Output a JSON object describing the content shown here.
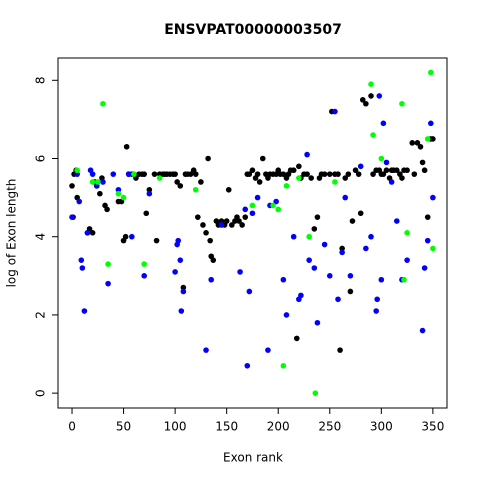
{
  "chart_data": {
    "type": "scatter",
    "title": "ENSVPAT00000003507",
    "x_label": "Exon rank",
    "y_label": "log of Exon length",
    "xlim": [
      -13.6,
      363.7
    ],
    "ylim": [
      -0.38,
      8.57
    ],
    "xticks": [
      0,
      50,
      100,
      150,
      200,
      250,
      300,
      350
    ],
    "yticks": [
      0,
      2,
      4,
      6,
      8
    ],
    "series": [
      {
        "color": "#000000",
        "x": [
          0,
          1,
          2,
          4,
          5,
          15,
          17,
          20,
          22,
          24,
          27,
          29,
          32,
          34,
          45,
          48,
          50,
          52,
          53,
          55,
          58,
          60,
          62,
          65,
          68,
          70,
          72,
          75,
          80,
          82,
          85,
          88,
          90,
          92,
          95,
          98,
          100,
          102,
          105,
          108,
          110,
          112,
          115,
          118,
          120,
          122,
          125,
          127,
          130,
          132,
          134,
          135,
          137,
          140,
          142,
          145,
          148,
          150,
          152,
          155,
          158,
          160,
          162,
          165,
          168,
          170,
          172,
          175,
          178,
          180,
          182,
          185,
          188,
          190,
          192,
          195,
          198,
          200,
          202,
          205,
          208,
          210,
          212,
          215,
          218,
          220,
          222,
          225,
          228,
          232,
          235,
          238,
          240,
          242,
          245,
          250,
          252,
          255,
          258,
          260,
          262,
          265,
          268,
          270,
          272,
          275,
          278,
          280,
          282,
          285,
          290,
          292,
          295,
          298,
          300,
          302,
          305,
          308,
          310,
          312,
          315,
          318,
          320,
          322,
          325,
          330,
          332,
          335,
          338,
          340,
          342,
          345,
          348,
          350
        ],
        "values": [
          5.3,
          4.5,
          5.6,
          5.7,
          5.0,
          4.1,
          4.2,
          4.1,
          5.4,
          5.3,
          5.1,
          5.5,
          4.8,
          4.7,
          4.9,
          4.9,
          3.9,
          4.0,
          6.3,
          5.6,
          5.6,
          5.6,
          5.5,
          5.6,
          5.6,
          5.6,
          4.6,
          5.2,
          5.6,
          3.9,
          5.6,
          5.6,
          5.6,
          5.6,
          5.6,
          5.6,
          5.6,
          5.4,
          5.3,
          2.7,
          5.6,
          5.6,
          5.6,
          5.7,
          5.6,
          4.5,
          5.4,
          4.3,
          4.1,
          6.0,
          3.9,
          3.5,
          3.4,
          4.4,
          4.3,
          4.4,
          4.3,
          4.4,
          5.2,
          4.3,
          4.4,
          4.5,
          4.4,
          4.3,
          4.5,
          5.6,
          5.6,
          5.7,
          5.5,
          5.6,
          5.4,
          6.0,
          5.6,
          5.5,
          5.6,
          5.6,
          5.6,
          5.7,
          5.6,
          5.6,
          5.5,
          5.6,
          5.7,
          5.7,
          1.4,
          5.8,
          5.5,
          5.6,
          5.6,
          5.5,
          4.2,
          4.5,
          5.5,
          5.6,
          5.6,
          5.6,
          7.2,
          5.6,
          5.6,
          1.1,
          3.7,
          5.5,
          5.6,
          2.6,
          4.4,
          5.7,
          5.6,
          4.6,
          7.5,
          7.4,
          7.6,
          5.6,
          5.7,
          5.7,
          5.6,
          5.6,
          5.7,
          5.5,
          5.7,
          5.7,
          5.7,
          5.6,
          5.5,
          5.7,
          5.7,
          6.4,
          5.6,
          6.4,
          6.3,
          5.9,
          5.7,
          4.5,
          6.5,
          6.5
        ]
      },
      {
        "color": "#0000ff",
        "x": [
          0,
          5,
          7,
          9,
          10,
          12,
          15,
          18,
          20,
          24,
          30,
          35,
          40,
          45,
          55,
          58,
          70,
          75,
          100,
          102,
          103,
          105,
          106,
          108,
          130,
          135,
          145,
          163,
          168,
          170,
          172,
          175,
          180,
          190,
          192,
          198,
          205,
          208,
          215,
          220,
          222,
          228,
          230,
          235,
          238,
          245,
          250,
          255,
          258,
          262,
          265,
          270,
          280,
          285,
          290,
          295,
          296,
          298,
          300,
          302,
          305,
          310,
          315,
          320,
          325,
          340,
          342,
          345,
          348,
          350
        ],
        "values": [
          4.5,
          5.6,
          4.9,
          3.4,
          3.2,
          2.1,
          4.1,
          5.7,
          5.6,
          5.3,
          5.4,
          2.8,
          5.6,
          5.2,
          5.6,
          4.0,
          3.0,
          5.1,
          3.1,
          3.8,
          3.9,
          3.4,
          2.1,
          2.6,
          1.1,
          2.9,
          4.3,
          3.1,
          4.7,
          0.7,
          2.6,
          4.6,
          5.0,
          1.1,
          4.8,
          4.9,
          2.9,
          2.0,
          4.0,
          2.4,
          2.5,
          6.1,
          3.4,
          3.2,
          1.8,
          3.8,
          3.0,
          7.2,
          2.4,
          3.6,
          5.0,
          3.0,
          5.8,
          3.7,
          4.0,
          2.1,
          2.4,
          7.6,
          2.9,
          6.9,
          5.9,
          5.4,
          4.4,
          2.9,
          3.4,
          1.6,
          3.2,
          3.9,
          6.9,
          5.0
        ]
      },
      {
        "color": "#00ff00",
        "x": [
          5,
          20,
          25,
          30,
          35,
          45,
          50,
          60,
          70,
          85,
          120,
          175,
          195,
          200,
          205,
          208,
          220,
          230,
          236,
          255,
          290,
          292,
          300,
          320,
          322,
          325,
          345,
          348,
          350
        ],
        "values": [
          5.7,
          5.4,
          5.4,
          7.4,
          3.3,
          5.1,
          5.0,
          5.6,
          3.3,
          5.5,
          5.2,
          4.8,
          4.8,
          4.7,
          0.7,
          5.3,
          5.5,
          4.0,
          0.0,
          5.4,
          7.9,
          6.6,
          6.0,
          7.4,
          2.9,
          4.1,
          6.5,
          8.2,
          3.7
        ]
      }
    ]
  }
}
